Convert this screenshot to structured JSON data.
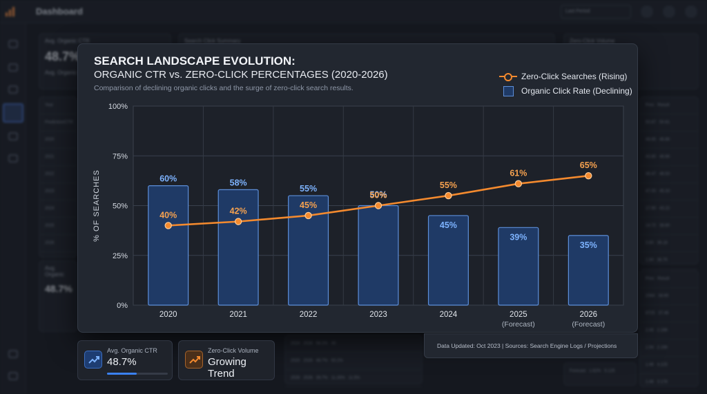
{
  "app": {
    "title": "Dashboard",
    "filter_label": "Last Period"
  },
  "background": {
    "ctr_card_title": "Avg. Organic CTR",
    "ctr_card_value": "48.7%",
    "ctr_card_sub": "Avg. Organic C",
    "search_card_title": "Search Click Summary",
    "zero_card_title": "Zero-Click Volume",
    "table_header": "Year",
    "table_header_2": "Prediction/CTR",
    "table_years": [
      "2020",
      "2021",
      "2022",
      "2023",
      "2024",
      "2025",
      "2026"
    ],
    "lower_label": "Avg. Organic",
    "lower_value": "48.7%",
    "bottom_rows": [
      [
        "2024",
        "2026",
        "56.2%",
        "45"
      ],
      [
        "2025",
        "2026",
        "48.7%",
        "50.2%"
      ],
      [
        "2026",
        "2026",
        "39.7%",
        "55",
        "11.26%",
        "11.5%"
      ]
    ],
    "right_table_header": [
      "Prev",
      "Result"
    ],
    "right_table_rows": [
      [
        "50.67",
        "50.81"
      ],
      [
        "48.65",
        "46.86"
      ],
      [
        "43.80",
        "46.66"
      ],
      [
        "46.47",
        "46.53"
      ],
      [
        "47.00",
        "45.33"
      ],
      [
        "17.90",
        "43.22"
      ],
      [
        "14.72",
        "38.80"
      ],
      [
        "3.80",
        "36.18"
      ],
      [
        "1.90",
        "36.75"
      ]
    ],
    "right_table2_header": [
      "Prev",
      "Result"
    ],
    "right_table2_rows": [
      [
        "2084",
        "38.65"
      ],
      [
        "8725",
        "37.48"
      ],
      [
        "2.45",
        "2.198"
      ],
      [
        "1.94",
        "2.198"
      ],
      [
        "1.46",
        "4.125"
      ],
      [
        "1.46",
        "3.178"
      ]
    ],
    "forecast_label": "Forecast",
    "forecast_values": [
      "1.62%",
      "5.125"
    ]
  },
  "legend": {
    "zero_click": "Zero-Click Searches (Rising)",
    "organic": "Organic Click Rate (Declining)"
  },
  "footer": {
    "text": "Data Updated: Oct 2023 | Sources: Search Engine Logs / Projections"
  },
  "kpis": {
    "ctr_label": "Avg. Organic CTR",
    "ctr_value": "48.7%",
    "ctr_progress": 0.487,
    "volume_label": "Zero-Click Volume",
    "volume_value": "Growing Trend"
  },
  "colors": {
    "bar_fill": "#1f3a66",
    "bar_stroke": "#5d8fda",
    "bar_label": "#7db3ff",
    "line": "#f48a2e",
    "line_label": "#f7a24f",
    "accent_blue": "#3b82f6"
  },
  "chart_data": {
    "type": "bar",
    "title": "SEARCH LANDSCAPE EVOLUTION:",
    "subtitle": "ORGANIC CTR vs. ZERO-CLICK PERCENTAGES (2020-2026)",
    "description": "Comparison of declining organic clicks and the surge of zero-click search results.",
    "xlabel": "",
    "ylabel": "% OF SEARCHES",
    "categories": [
      "2020",
      "2021",
      "2022",
      "2023",
      "2024",
      "2025",
      "2026"
    ],
    "category_notes": [
      "",
      "",
      "",
      "",
      "",
      "(Forecast)",
      "(Forecast)"
    ],
    "ylim": [
      0,
      100
    ],
    "yticks": [
      0,
      25,
      50,
      75,
      100
    ],
    "ytick_labels": [
      "0%",
      "25%",
      "50%",
      "75%",
      "100%"
    ],
    "grid": true,
    "legend_position": "top-right",
    "series": [
      {
        "name": "Organic Click Rate (Declining)",
        "type": "bar",
        "values": [
          60,
          58,
          55,
          50,
          45,
          39,
          35
        ],
        "labels": [
          "60%",
          "58%",
          "55%",
          "50%",
          "45%",
          "39%",
          "35%"
        ]
      },
      {
        "name": "Zero-Click Searches (Rising)",
        "type": "line",
        "values": [
          40,
          42,
          45,
          50,
          55,
          61,
          65
        ],
        "labels": [
          "40%",
          "42%",
          "45%",
          "50%",
          "55%",
          "61%",
          "65%"
        ]
      }
    ]
  }
}
